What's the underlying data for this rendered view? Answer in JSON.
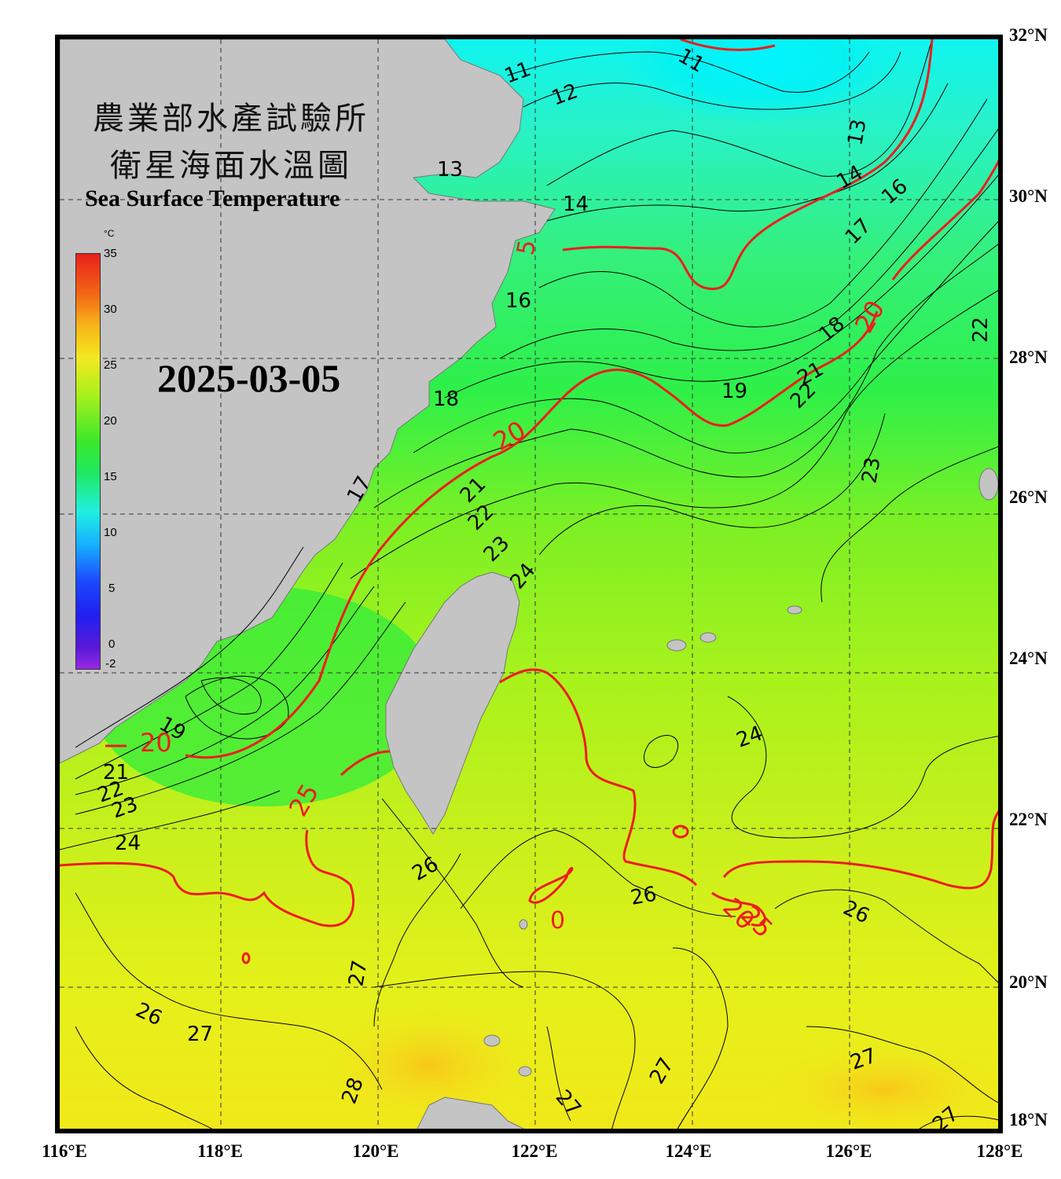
{
  "title_zh_line1": "農業部水產試驗所",
  "title_zh_line2": "衛星海面水溫圖",
  "title_en": "Sea Surface Temperature",
  "date": "2025-03-05",
  "colorbar": {
    "unit": "°C",
    "ticks": [
      "35",
      "30",
      "25",
      "20",
      "15",
      "10",
      "5",
      "0",
      "-2"
    ]
  },
  "axes": {
    "lat_labels": [
      "32°N",
      "30°N",
      "28°N",
      "26°N",
      "24°N",
      "22°N",
      "20°N",
      "18°N"
    ],
    "lon_labels": [
      "116°E",
      "118°E",
      "120°E",
      "122°E",
      "124°E",
      "126°E",
      "128°E"
    ]
  },
  "contour_labels": {
    "red": [
      "20",
      "20",
      "20",
      "20",
      "25",
      "25",
      "5",
      "0"
    ],
    "black": [
      "11",
      "11",
      "12",
      "13",
      "13",
      "14",
      "14",
      "16",
      "17",
      "18",
      "16",
      "18",
      "19",
      "19",
      "21",
      "22",
      "21",
      "22",
      "23",
      "24",
      "17",
      "21",
      "22",
      "23",
      "24",
      "22",
      "23",
      "24",
      "26",
      "26",
      "26",
      "26",
      "27",
      "27",
      "27",
      "27",
      "27",
      "28",
      "27"
    ]
  },
  "colors": {
    "land": "#c4c4c4",
    "contour_major": "#ee1c1c",
    "contour_minor": "#000000"
  }
}
